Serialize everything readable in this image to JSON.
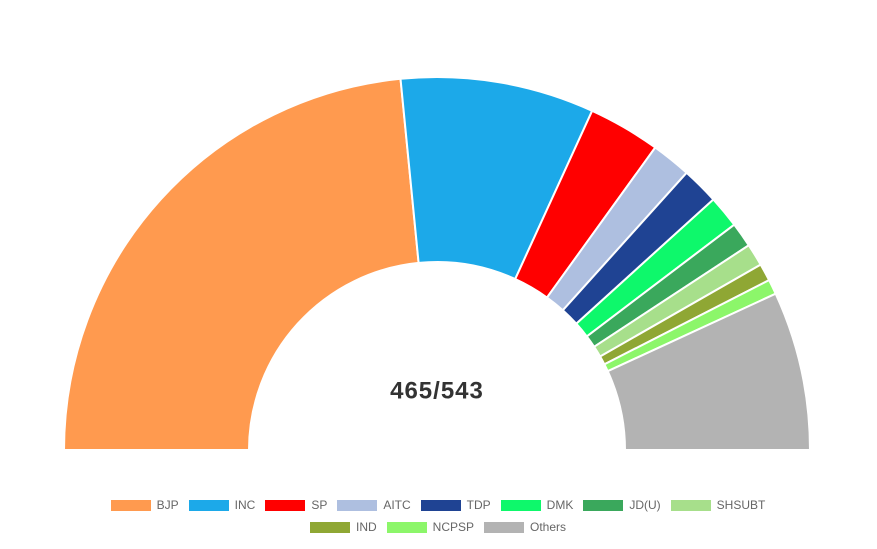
{
  "chart_data": {
    "type": "half-donut",
    "center_label": "465/543",
    "categories": [
      "BJP",
      "INC",
      "SP",
      "AITC",
      "TDP",
      "DMK",
      "JD(U)",
      "SHSUBT",
      "IND",
      "NCPSP",
      "Others"
    ],
    "values": [
      218,
      78,
      29,
      16,
      15,
      13,
      10,
      9,
      7,
      6,
      64
    ],
    "colors": [
      "#ff9a4f",
      "#1ca9e9",
      "#ff0000",
      "#aebfe0",
      "#1f4393",
      "#0ef86b",
      "#3aa85c",
      "#a7df8b",
      "#8fa734",
      "#8cf66a",
      "#b3b3b3"
    ]
  }
}
